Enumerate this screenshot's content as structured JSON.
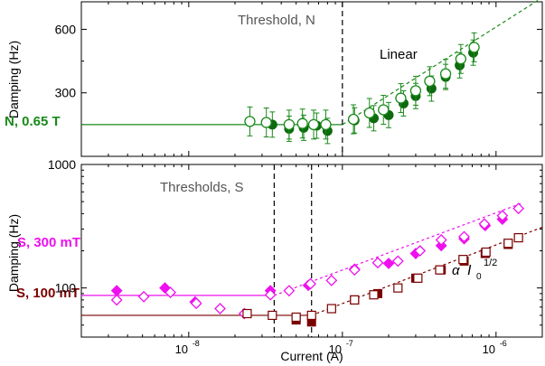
{
  "chart_data": [
    {
      "panel": "top",
      "type": "scatter",
      "ylabel": "Damping (Hz)",
      "xscale": "log",
      "yscale": "linear",
      "xlim": [
        2e-09,
        2e-06
      ],
      "ylim": [
        0,
        730
      ],
      "yticks": [
        "300",
        "600"
      ],
      "colors": {
        "green": "#1a8a1a",
        "dark_green": "#0e6a0e"
      },
      "series": [
        {
          "name": "N, 0.65 T",
          "color": "#1a8a1a",
          "filled_points": [
            {
              "x": 3.5e-08,
              "y": 150
            },
            {
              "x": 4.5e-08,
              "y": 130
            },
            {
              "x": 5.6e-08,
              "y": 135
            },
            {
              "x": 6.8e-08,
              "y": 145
            },
            {
              "x": 8e-08,
              "y": 120
            },
            {
              "x": 1.2e-07,
              "y": 170
            },
            {
              "x": 1.6e-07,
              "y": 180
            },
            {
              "x": 2e-07,
              "y": 195
            },
            {
              "x": 2.5e-07,
              "y": 250
            },
            {
              "x": 3e-07,
              "y": 285
            },
            {
              "x": 3.8e-07,
              "y": 320
            },
            {
              "x": 4.7e-07,
              "y": 375
            },
            {
              "x": 5.8e-07,
              "y": 430
            },
            {
              "x": 7.1e-07,
              "y": 490
            }
          ],
          "open_points": [
            {
              "x": 2.5e-08,
              "y": 165
            },
            {
              "x": 3.2e-08,
              "y": 160
            },
            {
              "x": 4.5e-08,
              "y": 150
            },
            {
              "x": 5.5e-08,
              "y": 155
            },
            {
              "x": 6.5e-08,
              "y": 150
            },
            {
              "x": 7.8e-08,
              "y": 150
            },
            {
              "x": 1.18e-07,
              "y": 175
            },
            {
              "x": 1.5e-07,
              "y": 205
            },
            {
              "x": 1.85e-07,
              "y": 220
            },
            {
              "x": 2.4e-07,
              "y": 275
            },
            {
              "x": 3e-07,
              "y": 310
            },
            {
              "x": 3.7e-07,
              "y": 355
            },
            {
              "x": 4.7e-07,
              "y": 390
            },
            {
              "x": 5.9e-07,
              "y": 460
            },
            {
              "x": 7.2e-07,
              "y": 515
            }
          ],
          "flat_line": {
            "x": [
              2e-09,
              1e-07
            ],
            "y": 150
          },
          "fit_line": {
            "x": [
              1e-07,
              2e-06
            ],
            "y": [
              150,
              750
            ]
          }
        }
      ],
      "threshold": {
        "x": 1e-07,
        "label": "Threshold, N"
      },
      "annotations": [
        "Linear",
        "N, 0.65 T"
      ]
    },
    {
      "panel": "bottom",
      "type": "scatter",
      "xlabel": "Current (A)",
      "ylabel": "Damping (Hz)",
      "xscale": "log",
      "yscale": "log",
      "xlim": [
        2e-09,
        2e-06
      ],
      "ylim": [
        40,
        1000
      ],
      "xticks": [
        {
          "base": "10",
          "exp": "-8"
        },
        {
          "base": "10",
          "exp": "-7"
        },
        {
          "base": "10",
          "exp": "-6"
        }
      ],
      "yticks": [
        "100",
        "1000"
      ],
      "thresholds": [
        3.6e-08,
        6.3e-08
      ],
      "threshold_label": "Thresholds, S",
      "fit_label": {
        "alpha": "α",
        "var": "I",
        "sub": "0",
        "sup": "1/2"
      },
      "series": [
        {
          "name": "S, 300 mT",
          "color": "#ee10ee",
          "filled_points": [
            {
              "x": 3.4e-09,
              "y": 95
            },
            {
              "x": 7e-09,
              "y": 100
            },
            {
              "x": 1.1e-08,
              "y": 77
            },
            {
              "x": 3.4e-08,
              "y": 95
            },
            {
              "x": 6e-08,
              "y": 105
            },
            {
              "x": 1.2e-07,
              "y": 142
            },
            {
              "x": 2e-07,
              "y": 158
            },
            {
              "x": 3e-07,
              "y": 190
            },
            {
              "x": 4.4e-07,
              "y": 220
            },
            {
              "x": 6.2e-07,
              "y": 250
            },
            {
              "x": 8.5e-07,
              "y": 320
            },
            {
              "x": 1.1e-06,
              "y": 360
            }
          ],
          "open_points": [
            {
              "x": 3.4e-09,
              "y": 80
            },
            {
              "x": 5.1e-09,
              "y": 85
            },
            {
              "x": 7.6e-09,
              "y": 92
            },
            {
              "x": 1.12e-08,
              "y": 75
            },
            {
              "x": 1.6e-08,
              "y": 68
            },
            {
              "x": 2.3e-08,
              "y": 62
            },
            {
              "x": 3.4e-08,
              "y": 88
            },
            {
              "x": 4.5e-08,
              "y": 95
            },
            {
              "x": 6.2e-08,
              "y": 108
            },
            {
              "x": 8.5e-08,
              "y": 115
            },
            {
              "x": 1.2e-07,
              "y": 140
            },
            {
              "x": 1.7e-07,
              "y": 160
            },
            {
              "x": 2.3e-07,
              "y": 165
            },
            {
              "x": 3.2e-07,
              "y": 200
            },
            {
              "x": 4.4e-07,
              "y": 245
            },
            {
              "x": 6.2e-07,
              "y": 260
            },
            {
              "x": 8.4e-07,
              "y": 330
            },
            {
              "x": 1.1e-06,
              "y": 385
            },
            {
              "x": 1.4e-06,
              "y": 440
            }
          ],
          "flat_line": {
            "x": [
              2e-09,
              3.6e-08
            ],
            "y": 87
          },
          "fit_line": {
            "x": [
              3.6e-08,
              1.5e-06
            ],
            "y": [
              87,
              490
            ]
          }
        },
        {
          "name": "S, 100 mT",
          "color": "#7a0000",
          "filled_points": [
            {
              "x": 5e-08,
              "y": 55
            },
            {
              "x": 6.3e-08,
              "y": 53
            },
            {
              "x": 1.2e-07,
              "y": 80
            },
            {
              "x": 1.7e-07,
              "y": 90
            },
            {
              "x": 3e-07,
              "y": 120
            },
            {
              "x": 4.4e-07,
              "y": 140
            },
            {
              "x": 6.2e-07,
              "y": 165
            },
            {
              "x": 8.5e-07,
              "y": 190
            },
            {
              "x": 1.2e-06,
              "y": 225
            }
          ],
          "open_points": [
            {
              "x": 2.4e-08,
              "y": 62
            },
            {
              "x": 3.5e-08,
              "y": 60
            },
            {
              "x": 5e-08,
              "y": 58
            },
            {
              "x": 6.3e-08,
              "y": 60
            },
            {
              "x": 8.5e-08,
              "y": 68
            },
            {
              "x": 1.2e-07,
              "y": 80
            },
            {
              "x": 1.6e-07,
              "y": 88
            },
            {
              "x": 2.3e-07,
              "y": 100
            },
            {
              "x": 3.1e-07,
              "y": 120
            },
            {
              "x": 4.3e-07,
              "y": 140
            },
            {
              "x": 6.1e-07,
              "y": 170
            },
            {
              "x": 8.6e-07,
              "y": 195
            },
            {
              "x": 1.2e-06,
              "y": 230
            },
            {
              "x": 1.4e-06,
              "y": 255
            }
          ],
          "flat_line": {
            "x": [
              2e-09,
              6.3e-08
            ],
            "y": 60
          },
          "fit_line": {
            "x": [
              6.3e-08,
              2e-06
            ],
            "y": [
              60,
              310
            ]
          }
        }
      ]
    }
  ]
}
